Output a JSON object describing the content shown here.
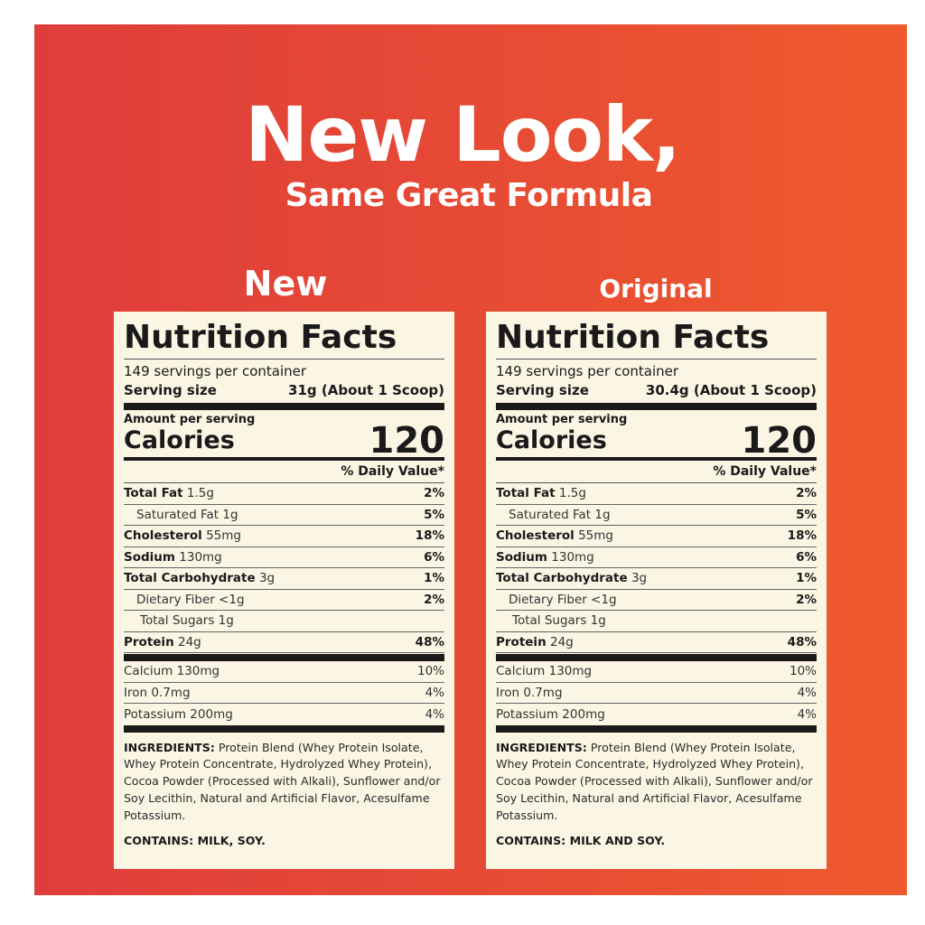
{
  "header": {
    "title": "New Look,",
    "subtitle": "Same Great Formula"
  },
  "colors": {
    "background_left": "#df3d3a",
    "background_right": "#ee5a2e",
    "panel": "#fbf5e3",
    "text": "#1a1a1a"
  },
  "panels": [
    {
      "heading": "New",
      "title": "Nutrition Facts",
      "servings": "149 servings per container",
      "serving_label": "Serving size",
      "serving_value": "31g (About 1 Scoop)",
      "amount_label": "Amount per serving",
      "calories_label": "Calories",
      "calories": "120",
      "dv_label": "% Daily Value*",
      "nutrients": [
        {
          "name": "Total Fat",
          "amount": "1.5g",
          "dv": "2%",
          "bold": true,
          "indent": 0
        },
        {
          "name": "Saturated Fat 1g",
          "amount": "",
          "dv": "5%",
          "bold": false,
          "indent": 1
        },
        {
          "name": "Cholesterol",
          "amount": "55mg",
          "dv": "18%",
          "bold": true,
          "indent": 0
        },
        {
          "name": "Sodium",
          "amount": "130mg",
          "dv": "6%",
          "bold": true,
          "indent": 0
        },
        {
          "name": "Total Carbohydrate",
          "amount": "3g",
          "dv": "1%",
          "bold": true,
          "indent": 0
        },
        {
          "name": "Dietary Fiber <1g",
          "amount": "",
          "dv": "2%",
          "bold": false,
          "indent": 1
        },
        {
          "name": "Total Sugars 1g",
          "amount": "",
          "dv": "",
          "bold": false,
          "indent": 2
        },
        {
          "name": "Protein",
          "amount": "24g",
          "dv": "48%",
          "bold": true,
          "indent": 0
        }
      ],
      "minerals": [
        {
          "name": "Calcium 130mg",
          "dv": "10%"
        },
        {
          "name": "Iron 0.7mg",
          "dv": "4%"
        },
        {
          "name": "Potassium 200mg",
          "dv": "4%"
        }
      ],
      "ingredients_label": "INGREDIENTS:",
      "ingredients": "Protein Blend (Whey Protein Isolate, Whey Protein Concentrate, Hydrolyzed Whey Protein), Cocoa Powder (Processed with Alkali), Sunflower and/or Soy Lecithin, Natural and Artificial Flavor, Acesulfame Potassium.",
      "contains": "CONTAINS: MILK, SOY."
    },
    {
      "heading": "Original",
      "title": "Nutrition Facts",
      "servings": "149 servings per container",
      "serving_label": "Serving size",
      "serving_value": "30.4g (About 1 Scoop)",
      "amount_label": "Amount per serving",
      "calories_label": "Calories",
      "calories": "120",
      "dv_label": "% Daily Value*",
      "nutrients": [
        {
          "name": "Total Fat",
          "amount": "1.5g",
          "dv": "2%",
          "bold": true,
          "indent": 0
        },
        {
          "name": "Saturated Fat 1g",
          "amount": "",
          "dv": "5%",
          "bold": false,
          "indent": 1
        },
        {
          "name": "Cholesterol",
          "amount": "55mg",
          "dv": "18%",
          "bold": true,
          "indent": 0
        },
        {
          "name": "Sodium",
          "amount": "130mg",
          "dv": "6%",
          "bold": true,
          "indent": 0
        },
        {
          "name": "Total Carbohydrate",
          "amount": "3g",
          "dv": "1%",
          "bold": true,
          "indent": 0
        },
        {
          "name": "Dietary Fiber <1g",
          "amount": "",
          "dv": "2%",
          "bold": false,
          "indent": 1
        },
        {
          "name": "Total Sugars 1g",
          "amount": "",
          "dv": "",
          "bold": false,
          "indent": 2
        },
        {
          "name": "Protein",
          "amount": "24g",
          "dv": "48%",
          "bold": true,
          "indent": 0
        }
      ],
      "minerals": [
        {
          "name": "Calcium 130mg",
          "dv": "10%"
        },
        {
          "name": "Iron 0.7mg",
          "dv": "4%"
        },
        {
          "name": "Potassium 200mg",
          "dv": "4%"
        }
      ],
      "ingredients_label": "INGREDIENTS:",
      "ingredients": "Protein Blend (Whey Protein Isolate, Whey Protein Concentrate, Hydrolyzed Whey Protein), Cocoa Powder (Processed with Alkali), Sunflower and/or Soy Lecithin, Natural and Artificial Flavor, Acesulfame Potassium.",
      "contains": "CONTAINS: MILK AND SOY."
    }
  ]
}
